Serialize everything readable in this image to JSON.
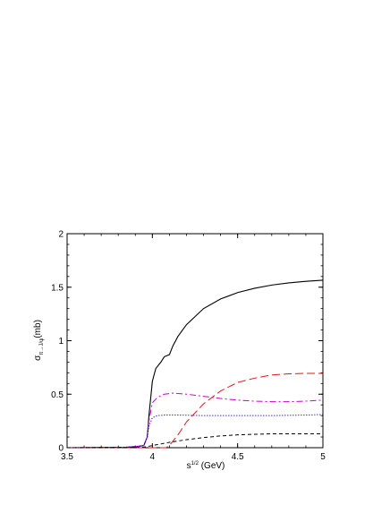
{
  "chart_data": {
    "type": "line",
    "title": "",
    "xlabel": {
      "base": "s",
      "sup": "1/2",
      "rest": " (GeV)"
    },
    "ylabel": {
      "base": "σ",
      "sub": "π→J/ψ",
      "rest": "(mb)"
    },
    "xlim": [
      3.5,
      5.0
    ],
    "ylim": [
      0,
      2.0
    ],
    "x_ticks": [
      3.5,
      4,
      4.5,
      5
    ],
    "x_tick_labels": [
      "3.5",
      "4",
      "4.5",
      "5"
    ],
    "y_ticks": [
      0,
      0.5,
      1,
      1.5,
      2
    ],
    "y_tick_labels": [
      "0",
      "0.5",
      "1",
      "1.5",
      "2"
    ],
    "grid": false,
    "series": [
      {
        "color": "#000000",
        "style": "solid",
        "x": [
          3.5,
          3.85,
          3.9,
          3.95,
          3.97,
          3.98,
          4.0,
          4.02,
          4.05,
          4.07,
          4.1,
          4.12,
          4.15,
          4.2,
          4.3,
          4.4,
          4.5,
          4.6,
          4.7,
          4.8,
          4.9,
          5.0
        ],
        "values": [
          0.0,
          0.005,
          0.01,
          0.02,
          0.1,
          0.3,
          0.62,
          0.74,
          0.8,
          0.85,
          0.87,
          0.95,
          1.04,
          1.15,
          1.3,
          1.39,
          1.45,
          1.49,
          1.52,
          1.54,
          1.555,
          1.565
        ]
      },
      {
        "color": "#dd1a1a",
        "style": "dashed",
        "x": [
          3.5,
          4.08,
          4.1,
          4.15,
          4.2,
          4.3,
          4.4,
          4.5,
          4.6,
          4.7,
          4.8,
          4.9,
          5.0
        ],
        "values": [
          0.0,
          0.0,
          0.02,
          0.12,
          0.24,
          0.41,
          0.53,
          0.61,
          0.65,
          0.68,
          0.69,
          0.695,
          0.695
        ]
      },
      {
        "color": "#cc00cc",
        "style": "dashdot",
        "x": [
          3.5,
          3.85,
          3.9,
          3.95,
          3.97,
          3.98,
          4.0,
          4.03,
          4.07,
          4.12,
          4.2,
          4.3,
          4.4,
          4.5,
          4.6,
          4.7,
          4.8,
          4.9,
          5.0
        ],
        "values": [
          0.0,
          0.005,
          0.01,
          0.02,
          0.1,
          0.25,
          0.42,
          0.47,
          0.5,
          0.51,
          0.5,
          0.48,
          0.46,
          0.445,
          0.435,
          0.43,
          0.43,
          0.435,
          0.445
        ]
      },
      {
        "color": "#0000cc",
        "style": "dotted",
        "x": [
          3.5,
          3.85,
          3.9,
          3.95,
          3.97,
          3.98,
          4.0,
          4.03,
          4.07,
          4.15,
          4.3,
          4.5,
          4.7,
          4.9,
          5.0
        ],
        "values": [
          0.0,
          0.005,
          0.01,
          0.02,
          0.1,
          0.2,
          0.28,
          0.3,
          0.305,
          0.305,
          0.3,
          0.3,
          0.3,
          0.305,
          0.31
        ]
      },
      {
        "color": "#000000",
        "style": "dashed-short",
        "x": [
          3.5,
          3.85,
          3.95,
          4.0,
          4.05,
          4.1,
          4.2,
          4.3,
          4.4,
          4.5,
          4.6,
          4.7,
          4.8,
          4.9,
          5.0
        ],
        "values": [
          0.0,
          0.0,
          0.005,
          0.02,
          0.035,
          0.05,
          0.075,
          0.095,
          0.11,
          0.12,
          0.125,
          0.13,
          0.13,
          0.13,
          0.13
        ]
      }
    ]
  }
}
